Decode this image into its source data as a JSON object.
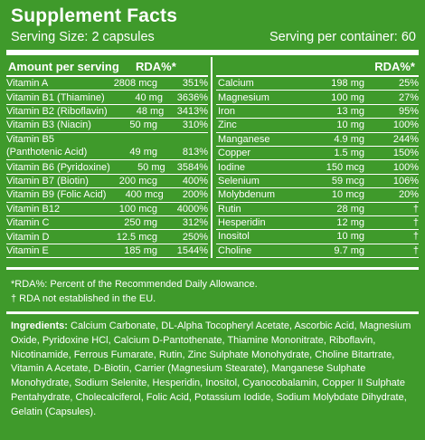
{
  "title": "Supplement Facts",
  "serving_size": "Serving Size: 2 capsules",
  "servings_per_container": "Serving per container: 60",
  "left_header": {
    "label": "Amount per serving",
    "rda": "RDA%*"
  },
  "right_header": {
    "rda": "RDA%*"
  },
  "left_rows": [
    {
      "name": "Vitamin A",
      "amount": "2808 mcg",
      "rda": "351%"
    },
    {
      "name": "Vitamin B1 (Thiamine)",
      "amount": "40 mg",
      "rda": "3636%"
    },
    {
      "name": "Vitamin B2 (Riboflavin)",
      "amount": "48 mg",
      "rda": "3413%"
    },
    {
      "name": "Vitamin B3 (Niacin)",
      "amount": "50 mg",
      "rda": "310%"
    },
    {
      "name": "Vitamin B5",
      "name2": "(Panthotenic Acid)",
      "amount": "49 mg",
      "rda": "813%"
    },
    {
      "name": "Vitamin B6 (Pyridoxine)",
      "amount": "50 mg",
      "rda": "3584%"
    },
    {
      "name": "Vitamin B7 (Biotin)",
      "amount": "200 mcg",
      "rda": "400%"
    },
    {
      "name": "Vitamin B9 (Folic Acid)",
      "amount": "400 mcg",
      "rda": "200%"
    },
    {
      "name": "Vitamin B12",
      "amount": "100 mcg",
      "rda": "4000%"
    },
    {
      "name": "Vitamin C",
      "amount": "250 mg",
      "rda": "312%"
    },
    {
      "name": "Vitamin D",
      "amount": "12.5 mcg",
      "rda": "250%"
    },
    {
      "name": "Vitamin E",
      "amount": "185 mg",
      "rda": "1544%"
    }
  ],
  "right_rows": [
    {
      "name": "Calcium",
      "amount": "198 mg",
      "rda": "25%"
    },
    {
      "name": "Magnesium",
      "amount": "100 mg",
      "rda": "27%"
    },
    {
      "name": "Iron",
      "amount": "13 mg",
      "rda": "95%"
    },
    {
      "name": "Zinc",
      "amount": "10 mg",
      "rda": "100%"
    },
    {
      "name": "Manganese",
      "amount": "4.9 mg",
      "rda": "244%"
    },
    {
      "name": "Copper",
      "amount": "1.5 mg",
      "rda": "150%"
    },
    {
      "name": "Iodine",
      "amount": "150 mcg",
      "rda": "100%"
    },
    {
      "name": "Selenium",
      "amount": "59 mcg",
      "rda": "106%"
    },
    {
      "name": "Molybdenum",
      "amount": "10 mcg",
      "rda": "20%"
    },
    {
      "name": "Rutin",
      "amount": "28 mg",
      "rda": "†"
    },
    {
      "name": "Hesperidin",
      "amount": "12 mg",
      "rda": "†"
    },
    {
      "name": "Inositol",
      "amount": "10 mg",
      "rda": "†"
    },
    {
      "name": "Choline",
      "amount": "9.7 mg",
      "rda": "†"
    }
  ],
  "footnotes": [
    "*RDA%: Percent of the Recommended Daily Allowance.",
    "† RDA not established in the EU."
  ],
  "ingredients_label": "Ingredients:",
  "ingredients_text": "Calcium Carbonate, DL-Alpha Tocopheryl Acetate, Ascorbic Acid, Magnesium Oxide, Pyridoxine HCl, Calcium D-Pantothenate, Thiamine Mononitrate, Riboflavin, Nicotinamide, Ferrous Fumarate, Rutin, Zinc Sulphate Monohydrate, Choline Bitartrate, Vitamin A Acetate, D-Biotin, Carrier (Magnesium Stearate), Manganese Sulphate Monohydrate, Sodium Selenite, Hesperidin, Inositol, Cyanocobalamin, Copper II Sulphate Pentahydrate, Cholecalciferol, Folic Acid, Potassium Iodide, Sodium Molybdate Dihydrate, Gelatin (Capsules)."
}
